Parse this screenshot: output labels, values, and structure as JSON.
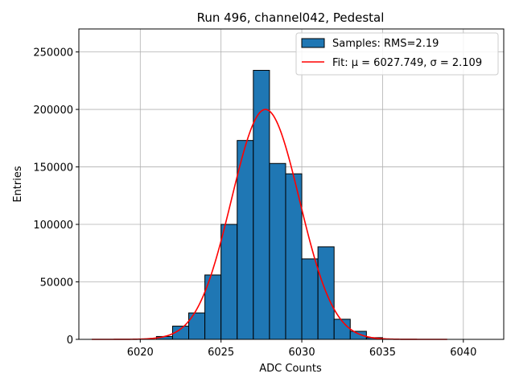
{
  "chart_data": {
    "type": "bar",
    "title": "Run 496, channel042, Pedestal",
    "xlabel": "ADC Counts",
    "ylabel": "Entries",
    "xlim": [
      6016.2,
      6042.5
    ],
    "ylim": [
      0,
      270000
    ],
    "xticks": [
      6020,
      6025,
      6030,
      6035,
      6040
    ],
    "yticks": [
      0,
      50000,
      100000,
      150000,
      200000,
      250000
    ],
    "grid": true,
    "legend_position": "top-right",
    "bin_width": 1,
    "series": [
      {
        "name": "Samples: RMS=2.19",
        "kind": "histogram",
        "color": "#1f77b4",
        "bins": [
          {
            "left": 6021,
            "value": 2500
          },
          {
            "left": 6022,
            "value": 11500
          },
          {
            "left": 6023,
            "value": 23000
          },
          {
            "left": 6024,
            "value": 56000
          },
          {
            "left": 6025,
            "value": 100000
          },
          {
            "left": 6026,
            "value": 173000
          },
          {
            "left": 6027,
            "value": 234000
          },
          {
            "left": 6028,
            "value": 153000
          },
          {
            "left": 6029,
            "value": 144000
          },
          {
            "left": 6030,
            "value": 70000
          },
          {
            "left": 6031,
            "value": 80500
          },
          {
            "left": 6032,
            "value": 17500
          },
          {
            "left": 6033,
            "value": 7000
          },
          {
            "left": 6034,
            "value": 1500
          }
        ]
      },
      {
        "name": "Fit: μ = 6027.749, σ = 2.109",
        "kind": "gaussian",
        "color": "#ff0000",
        "mu": 6027.749,
        "sigma": 2.109,
        "amplitude": 200000,
        "x_range": [
          6017,
          6039
        ]
      }
    ]
  }
}
